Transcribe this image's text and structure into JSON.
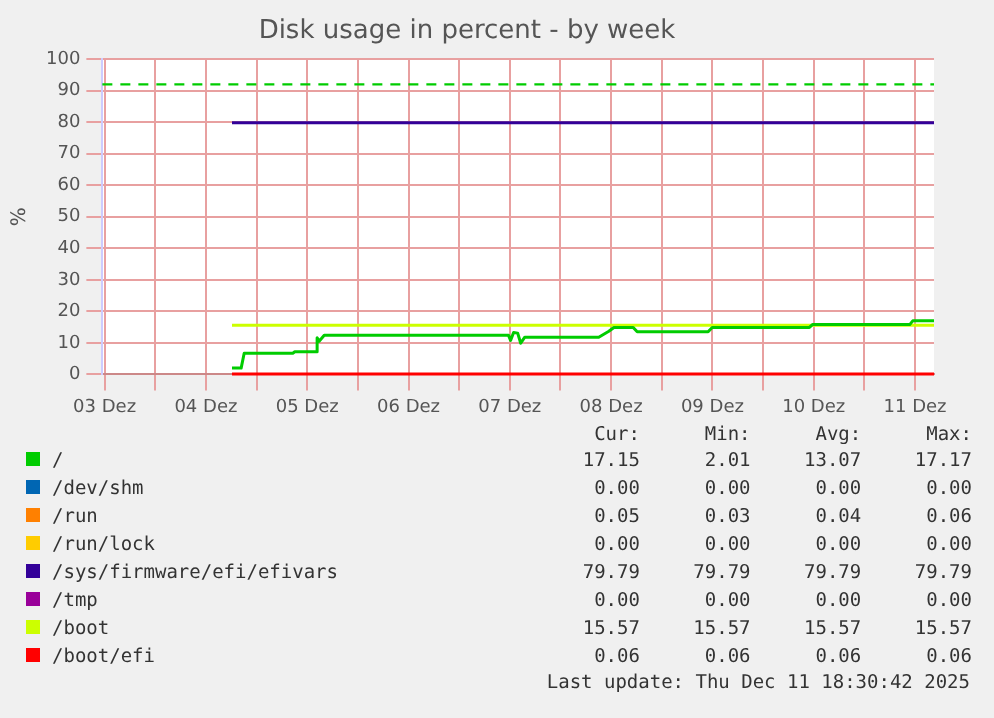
{
  "chart_data": {
    "type": "line",
    "title": "Disk usage in percent - by week",
    "ylabel": "%",
    "xlim": [
      "2025-12-03T11:28",
      "2025-12-11T16:30"
    ],
    "xticks": [
      {
        "value": "2025-12-03T12:00",
        "label": "03 Dez"
      },
      {
        "value": "2025-12-04",
        "label": null
      },
      {
        "value": "2025-12-04T12:00",
        "label": "04 Dez"
      },
      {
        "value": "2025-12-05",
        "label": null
      },
      {
        "value": "2025-12-05T12:00",
        "label": "05 Dez"
      },
      {
        "value": "2025-12-06",
        "label": null
      },
      {
        "value": "2025-12-06T12:00",
        "label": "06 Dez"
      },
      {
        "value": "2025-12-07",
        "label": null
      },
      {
        "value": "2025-12-07T12:00",
        "label": "07 Dez"
      },
      {
        "value": "2025-12-08",
        "label": null
      },
      {
        "value": "2025-12-08T12:00",
        "label": "08 Dez"
      },
      {
        "value": "2025-12-09",
        "label": null
      },
      {
        "value": "2025-12-09T12:00",
        "label": "09 Dez"
      },
      {
        "value": "2025-12-10",
        "label": null
      },
      {
        "value": "2025-12-10T12:00",
        "label": "10 Dez"
      },
      {
        "value": "2025-12-11",
        "label": null
      },
      {
        "value": "2025-12-11T12:00",
        "label": "11 Dez"
      }
    ],
    "ylim": [
      0,
      100
    ],
    "yticks": [
      0,
      10,
      20,
      30,
      40,
      50,
      60,
      70,
      80,
      90,
      100
    ],
    "grid": true,
    "legend": "bottom",
    "series": [
      {
        "name": "/",
        "color": "#00cc00",
        "x": [
          "2025-12-04T18:11",
          "2025-12-04T20:21",
          "2025-12-04T21:04",
          "2025-12-05T08:35",
          "2025-12-05T09:04",
          "2025-12-05T14:06",
          "2025-12-05T14:21",
          "2025-12-05T14:50",
          "2025-12-05T16:02",
          "2025-12-07T11:42",
          "2025-12-07T12:11",
          "2025-12-07T12:54",
          "2025-12-07T13:52",
          "2025-12-07T14:35",
          "2025-12-07T15:33",
          "2025-12-08T09:04",
          "2025-12-08T11:28",
          "2025-12-08T12:40",
          "2025-12-08T17:14",
          "2025-12-08T18:11",
          "2025-12-09T10:59",
          "2025-12-09T11:57",
          "2025-12-10T10:59",
          "2025-12-10T11:42",
          "2025-12-11T10:45",
          "2025-12-11T11:28",
          "2025-12-11T16:30"
        ],
        "values": [
          2.0,
          2.0,
          6.7,
          6.7,
          7.2,
          7.2,
          11.6,
          10.5,
          12.4,
          12.4,
          10.8,
          13.3,
          13.1,
          9.9,
          11.8,
          11.8,
          13.7,
          14.9,
          14.9,
          13.5,
          13.5,
          14.9,
          14.9,
          15.8,
          15.8,
          17.0,
          17.0
        ]
      },
      {
        "name": "/dev/shm",
        "color": "#0066b3"
      },
      {
        "name": "/run",
        "color": "#ff8000"
      },
      {
        "name": "/run/lock",
        "color": "#ffcc00"
      },
      {
        "name": "/sys/firmware/efi/efivars",
        "color": "#330099",
        "x": [
          "2025-12-04T18:11",
          "2025-12-11T16:30"
        ],
        "values": [
          79.8,
          79.8
        ]
      },
      {
        "name": "/tmp",
        "color": "#990099"
      },
      {
        "name": "/boot",
        "color": "#ccff00",
        "x": [
          "2025-12-04T18:11",
          "2025-12-11T16:30"
        ],
        "values": [
          15.6,
          15.6
        ]
      },
      {
        "name": "/boot/efi",
        "color": "#ff0000",
        "x": [
          "2025-12-04T18:11",
          "2025-12-11T16:30"
        ],
        "values": [
          0.1,
          0.1
        ]
      }
    ],
    "ref_lines": [
      {
        "axis": "y",
        "value": 92,
        "color": "#00cc00",
        "line_style": "dashed"
      }
    ],
    "annotations": [
      "Cur:",
      "Min:",
      "Avg:",
      "Max:",
      "17.15",
      "2.01",
      "13.07",
      "17.17",
      "0.00",
      "0.00",
      "0.00",
      "0.00",
      "0.05",
      "0.03",
      "0.04",
      "0.06",
      "0.00",
      "0.00",
      "0.00",
      "0.00",
      "79.79",
      "79.79",
      "79.79",
      "79.79",
      "0.00",
      "0.00",
      "0.00",
      "0.00",
      "15.57",
      "15.57",
      "15.57",
      "15.57",
      "0.06",
      "0.06",
      "0.06",
      "0.06",
      "Last update: Thu Dec 11 18:30:42 2025"
    ]
  }
}
